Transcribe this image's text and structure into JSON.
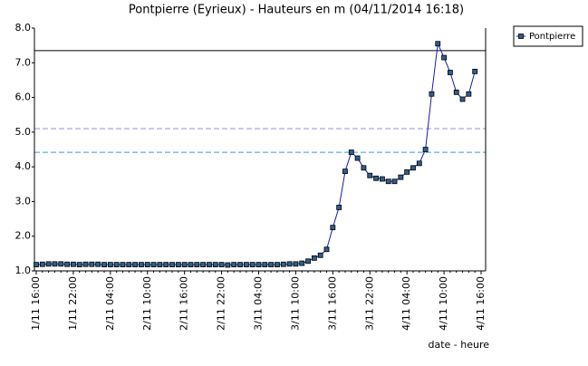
{
  "chart_data": {
    "type": "line",
    "title": "Pontpierre (Eyrieux) - Hauteurs en m (04/11/2014 16:18)",
    "x_label": "date - heure",
    "categories": [
      "1/11 16:00",
      null,
      null,
      null,
      null,
      null,
      "1/11 22:00",
      null,
      null,
      null,
      null,
      null,
      "2/11 04:00",
      null,
      null,
      null,
      null,
      null,
      "2/11 10:00",
      null,
      null,
      null,
      null,
      null,
      "2/11 16:00",
      null,
      null,
      null,
      null,
      null,
      "2/11 22:00",
      null,
      null,
      null,
      null,
      null,
      "3/11 04:00",
      null,
      null,
      null,
      null,
      null,
      "3/11 10:00",
      null,
      null,
      null,
      null,
      null,
      "3/11 16:00",
      null,
      null,
      null,
      null,
      null,
      "3/11 22:00",
      null,
      null,
      null,
      null,
      null,
      "4/11 04:00",
      null,
      null,
      null,
      null,
      null,
      "4/11 10:00",
      null,
      null,
      null,
      null,
      null,
      "4/11 16:00"
    ],
    "series": [
      {
        "name": "Pontpierre",
        "color": "#1a1aa6",
        "marker_color": "#2f5f8a",
        "values": [
          1.18,
          1.19,
          1.2,
          1.2,
          1.2,
          1.19,
          1.19,
          1.18,
          1.19,
          1.19,
          1.19,
          1.18,
          1.18,
          1.18,
          1.18,
          1.18,
          1.18,
          1.18,
          1.18,
          1.18,
          1.18,
          1.18,
          1.18,
          1.18,
          1.18,
          1.18,
          1.18,
          1.18,
          1.18,
          1.18,
          1.18,
          1.17,
          1.18,
          1.18,
          1.18,
          1.18,
          1.18,
          1.18,
          1.18,
          1.18,
          1.19,
          1.2,
          1.2,
          1.22,
          1.28,
          1.37,
          1.45,
          1.62,
          2.25,
          2.83,
          3.87,
          4.42,
          4.25,
          3.97,
          3.75,
          3.67,
          3.65,
          3.58,
          3.58,
          3.7,
          3.85,
          3.97,
          4.1,
          4.5,
          6.1,
          7.55,
          7.15,
          6.72,
          6.15,
          5.95,
          6.1,
          6.75,
          null
        ]
      }
    ],
    "reference_lines": [
      {
        "value": 7.35,
        "color": "#000000",
        "dash": false
      },
      {
        "value": 5.1,
        "color": "#9a8fd8",
        "dash": true
      },
      {
        "value": 4.42,
        "color": "#3aa0c8",
        "dash": true
      }
    ],
    "ylim": [
      1,
      8
    ],
    "yticks": [
      {
        "value": 1,
        "label": "1.0"
      },
      {
        "value": 2,
        "label": "2.0"
      },
      {
        "value": 3,
        "label": "3.0"
      },
      {
        "value": 4,
        "label": "4.0"
      },
      {
        "value": 5,
        "label": "5.0"
      },
      {
        "value": 6,
        "label": "6.0"
      },
      {
        "value": 7,
        "label": "7.0"
      },
      {
        "value": 8,
        "label": "8.0"
      }
    ],
    "legend": "top-right"
  }
}
